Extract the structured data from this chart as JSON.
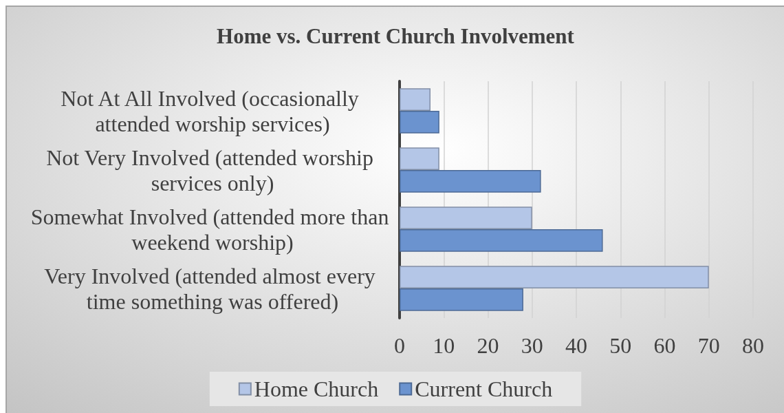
{
  "chart_data": {
    "type": "bar",
    "orientation": "horizontal",
    "title": "Home vs. Current Church Involvement",
    "categories": [
      "Not At All Involved (occasionally attended worship services)",
      "Not Very Involved (attended worship services only)",
      "Somewhat Involved (attended more than weekend worship)",
      "Very Involved (attended almost every time something was offered)"
    ],
    "series": [
      {
        "name": "Home Church",
        "color": "#b4c6e7",
        "values": [
          7,
          9,
          30,
          70
        ]
      },
      {
        "name": "Current Church",
        "color": "#6b93cf",
        "values": [
          9,
          32,
          46,
          28
        ]
      }
    ],
    "xlim": [
      0,
      80
    ],
    "xticks": [
      0,
      10,
      20,
      30,
      40,
      50,
      60,
      70,
      80
    ],
    "grid": "x",
    "legend": "bottom"
  }
}
